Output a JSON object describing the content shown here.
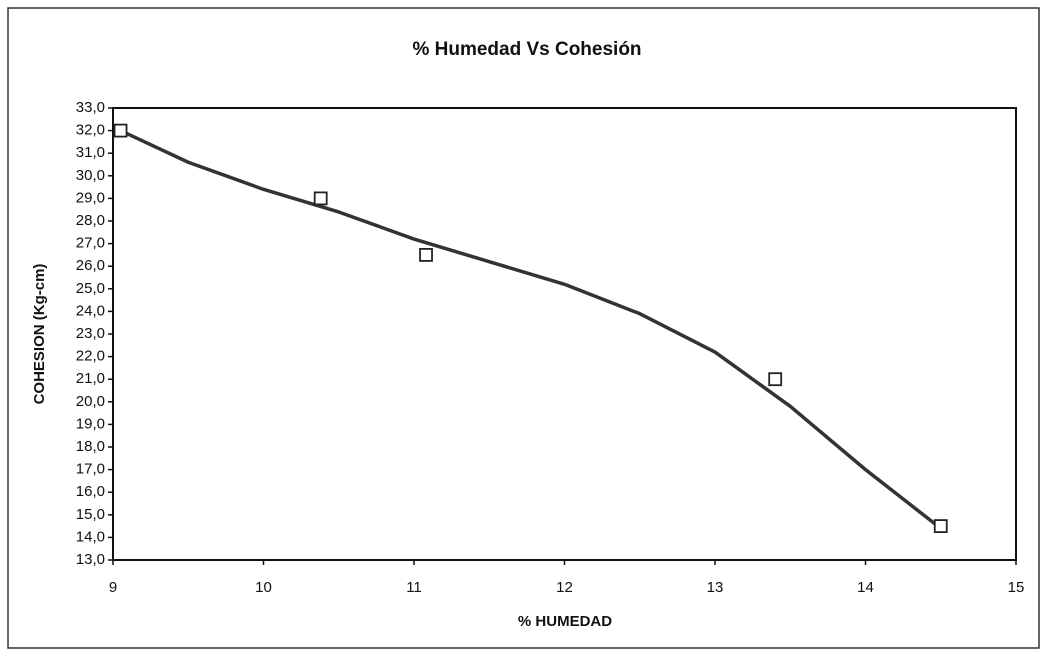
{
  "chart_data": {
    "type": "scatter",
    "title": "% Humedad Vs Cohesión",
    "x_label": "% HUMEDAD",
    "y_label": "COHESION (Kg-cm)",
    "x": [
      9.05,
      10.38,
      11.08,
      13.4,
      14.5
    ],
    "values": [
      32.0,
      29.0,
      26.5,
      21.0,
      14.5
    ],
    "color": "#222222",
    "trend": {
      "color": "#333333",
      "x": [
        9.05,
        9.5,
        10,
        10.5,
        11,
        11.5,
        12,
        12.5,
        13,
        13.5,
        14,
        14.5
      ],
      "values": [
        32.0,
        30.6,
        29.4,
        28.4,
        27.2,
        26.2,
        25.2,
        23.9,
        22.2,
        19.8,
        17.0,
        14.4
      ]
    },
    "xlim": [
      9,
      15
    ],
    "xticks": [
      9,
      10,
      11,
      12,
      13,
      14,
      15
    ],
    "ylim": [
      13,
      33
    ],
    "yticks": [
      {
        "value": 13,
        "label": "13,0"
      },
      {
        "value": 14,
        "label": "14,0"
      },
      {
        "value": 15,
        "label": "15,0"
      },
      {
        "value": 16,
        "label": "16,0"
      },
      {
        "value": 17,
        "label": "17,0"
      },
      {
        "value": 18,
        "label": "18,0"
      },
      {
        "value": 19,
        "label": "19,0"
      },
      {
        "value": 20,
        "label": "20,0"
      },
      {
        "value": 21,
        "label": "21,0"
      },
      {
        "value": 22,
        "label": "22,0"
      },
      {
        "value": 23,
        "label": "23,0"
      },
      {
        "value": 24,
        "label": "24,0"
      },
      {
        "value": 25,
        "label": "25,0"
      },
      {
        "value": 26,
        "label": "26,0"
      },
      {
        "value": 27,
        "label": "27,0"
      },
      {
        "value": 28,
        "label": "28,0"
      },
      {
        "value": 29,
        "label": "29,0"
      },
      {
        "value": 30,
        "label": "30,0"
      },
      {
        "value": 31,
        "label": "31,0"
      },
      {
        "value": 32,
        "label": "32,0"
      },
      {
        "value": 33,
        "label": "33,0"
      }
    ],
    "grid": false
  }
}
